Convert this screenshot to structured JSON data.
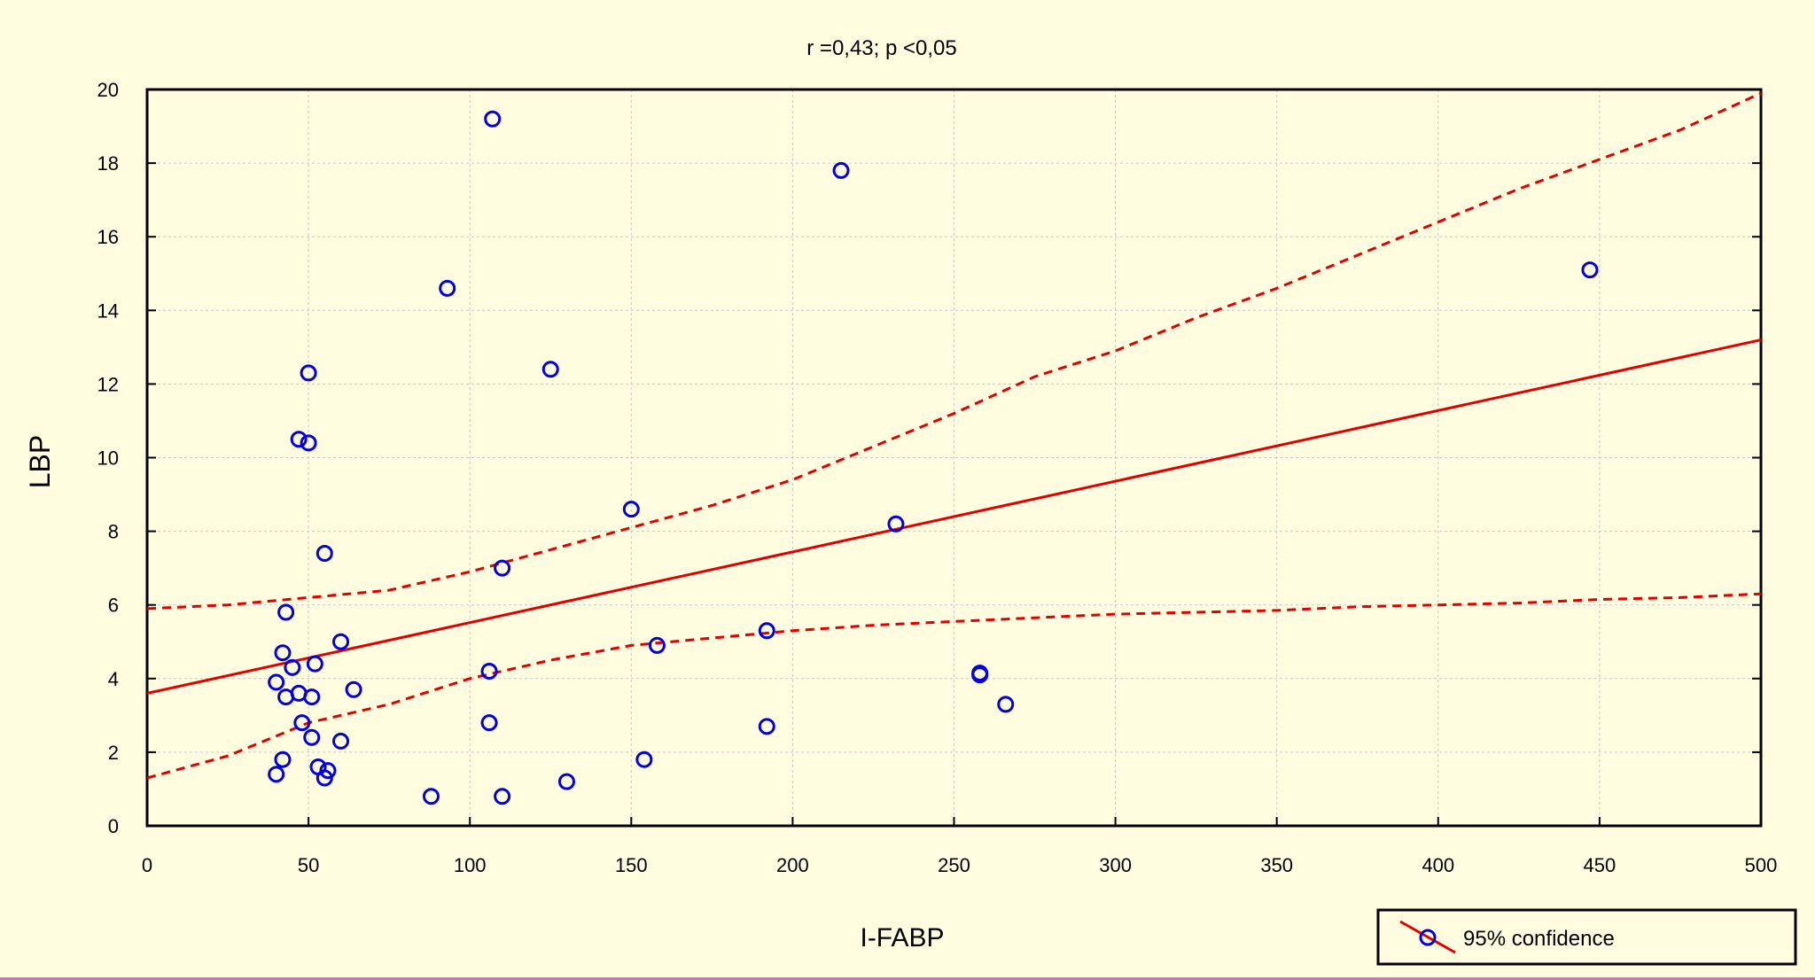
{
  "chart_data": {
    "type": "scatter",
    "title": "r =0,43; p            <0,05",
    "xlabel": "I-FABP",
    "ylabel": "LBP",
    "xlim": [
      0,
      500
    ],
    "ylim": [
      0,
      20
    ],
    "x_ticks": [
      "0",
      "50",
      "100",
      "150",
      "200",
      "250",
      "300",
      "350",
      "400",
      "450",
      "500"
    ],
    "y_ticks": [
      "0",
      "2",
      "4",
      "6",
      "8",
      "10",
      "12",
      "14",
      "16",
      "18",
      "20"
    ],
    "grid": true,
    "legend": {
      "position": "bottom-right",
      "label": "95% confidence"
    },
    "colors": {
      "points": "#0000dd",
      "fit": "#e00000",
      "background": "#fffce0"
    },
    "points": [
      [
        107,
        19.2
      ],
      [
        215,
        17.8
      ],
      [
        447,
        15.1
      ],
      [
        93,
        14.6
      ],
      [
        50,
        12.3
      ],
      [
        125,
        12.4
      ],
      [
        47,
        10.5
      ],
      [
        50,
        10.4
      ],
      [
        150,
        8.6
      ],
      [
        232,
        8.2
      ],
      [
        55,
        7.4
      ],
      [
        110,
        7.0
      ],
      [
        43,
        5.8
      ],
      [
        42,
        4.7
      ],
      [
        60,
        5.0
      ],
      [
        192,
        5.3
      ],
      [
        158,
        4.9
      ],
      [
        45,
        4.3
      ],
      [
        52,
        4.4
      ],
      [
        106,
        4.2
      ],
      [
        258,
        4.1
      ],
      [
        258,
        4.15
      ],
      [
        40,
        3.9
      ],
      [
        47,
        3.6
      ],
      [
        64,
        3.7
      ],
      [
        43,
        3.5
      ],
      [
        51,
        3.5
      ],
      [
        266,
        3.3
      ],
      [
        48,
        2.8
      ],
      [
        106,
        2.8
      ],
      [
        192,
        2.7
      ],
      [
        51,
        2.4
      ],
      [
        60,
        2.3
      ],
      [
        42,
        1.8
      ],
      [
        154,
        1.8
      ],
      [
        53,
        1.6
      ],
      [
        56,
        1.5
      ],
      [
        40,
        1.4
      ],
      [
        55,
        1.3
      ],
      [
        130,
        1.2
      ],
      [
        88,
        0.8
      ],
      [
        110,
        0.8
      ]
    ],
    "fit_line": {
      "intercept": 3.6,
      "slope": 0.0192
    },
    "confidence_upper": [
      [
        0,
        5.9
      ],
      [
        25,
        6.0
      ],
      [
        50,
        6.2
      ],
      [
        75,
        6.4
      ],
      [
        100,
        6.9
      ],
      [
        125,
        7.5
      ],
      [
        150,
        8.1
      ],
      [
        175,
        8.7
      ],
      [
        200,
        9.4
      ],
      [
        225,
        10.3
      ],
      [
        250,
        11.2
      ],
      [
        275,
        12.2
      ],
      [
        300,
        12.9
      ],
      [
        325,
        13.8
      ],
      [
        350,
        14.6
      ],
      [
        375,
        15.5
      ],
      [
        400,
        16.4
      ],
      [
        425,
        17.3
      ],
      [
        450,
        18.1
      ],
      [
        475,
        18.9
      ],
      [
        500,
        19.9
      ]
    ],
    "confidence_lower": [
      [
        0,
        1.3
      ],
      [
        25,
        1.9
      ],
      [
        50,
        2.8
      ],
      [
        75,
        3.3
      ],
      [
        100,
        4.0
      ],
      [
        125,
        4.5
      ],
      [
        150,
        4.9
      ],
      [
        175,
        5.1
      ],
      [
        200,
        5.3
      ],
      [
        225,
        5.45
      ],
      [
        250,
        5.55
      ],
      [
        275,
        5.65
      ],
      [
        300,
        5.75
      ],
      [
        325,
        5.8
      ],
      [
        350,
        5.85
      ],
      [
        375,
        5.95
      ],
      [
        400,
        6.0
      ],
      [
        425,
        6.05
      ],
      [
        450,
        6.15
      ],
      [
        475,
        6.2
      ],
      [
        500,
        6.3
      ]
    ]
  }
}
